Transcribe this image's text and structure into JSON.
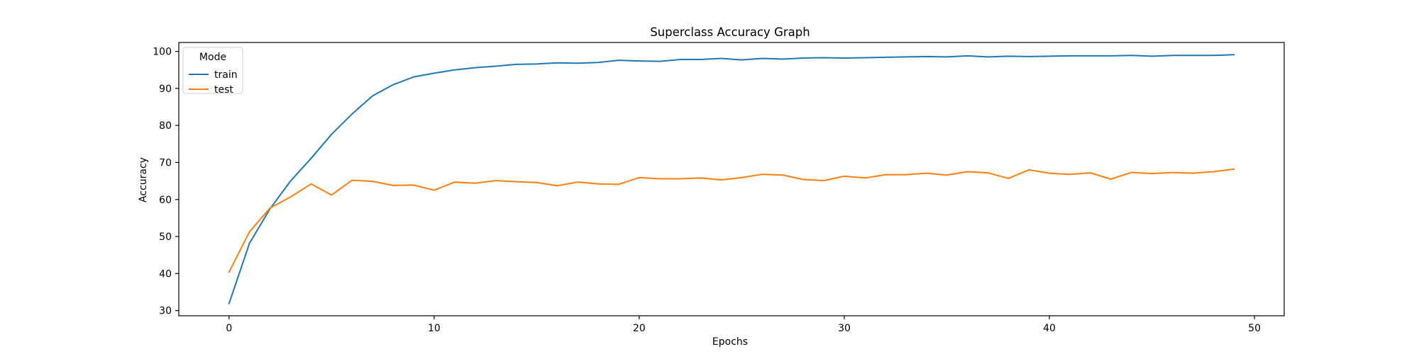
{
  "chart_data": {
    "type": "line",
    "title": "Superclass Accuracy Graph",
    "xlabel": "Epochs",
    "ylabel": "Accuracy",
    "xlim": [
      -2.45,
      51.45
    ],
    "ylim": [
      28.6,
      102.4
    ],
    "xticks": [
      0,
      10,
      20,
      30,
      40,
      50
    ],
    "yticks": [
      30,
      40,
      50,
      60,
      70,
      80,
      90,
      100
    ],
    "grid": false,
    "legend": {
      "title": "Mode",
      "position": "top-left"
    },
    "x": [
      0,
      1,
      2,
      3,
      4,
      5,
      6,
      7,
      8,
      9,
      10,
      11,
      12,
      13,
      14,
      15,
      16,
      17,
      18,
      19,
      20,
      21,
      22,
      23,
      24,
      25,
      26,
      27,
      28,
      29,
      30,
      31,
      32,
      33,
      34,
      35,
      36,
      37,
      38,
      39,
      40,
      41,
      42,
      43,
      44,
      45,
      46,
      47,
      48,
      49
    ],
    "series": [
      {
        "name": "train",
        "color": "#1f77b4",
        "values": [
          31.9,
          48.2,
          57.5,
          65.0,
          71.1,
          77.6,
          83.1,
          88.0,
          91.0,
          93.1,
          94.1,
          95.0,
          95.6,
          96.0,
          96.5,
          96.6,
          96.9,
          96.8,
          97.0,
          97.6,
          97.4,
          97.3,
          97.8,
          97.8,
          98.1,
          97.7,
          98.1,
          97.9,
          98.2,
          98.3,
          98.2,
          98.3,
          98.4,
          98.5,
          98.6,
          98.5,
          98.8,
          98.5,
          98.7,
          98.6,
          98.7,
          98.8,
          98.8,
          98.8,
          98.9,
          98.7,
          98.9,
          98.9,
          98.9,
          99.1
        ]
      },
      {
        "name": "test",
        "color": "#ff7f0e",
        "values": [
          40.4,
          51.3,
          57.7,
          60.7,
          64.2,
          61.2,
          65.2,
          64.9,
          63.8,
          63.9,
          62.5,
          64.7,
          64.4,
          65.1,
          64.8,
          64.6,
          63.7,
          64.7,
          64.2,
          64.1,
          65.9,
          65.6,
          65.6,
          65.8,
          65.3,
          65.9,
          66.8,
          66.6,
          65.4,
          65.1,
          66.3,
          65.8,
          66.7,
          66.7,
          67.1,
          66.6,
          67.5,
          67.2,
          65.7,
          68.0,
          67.1,
          66.8,
          67.2,
          65.5,
          67.3,
          67.0,
          67.3,
          67.1,
          67.5,
          68.2
        ]
      }
    ]
  }
}
